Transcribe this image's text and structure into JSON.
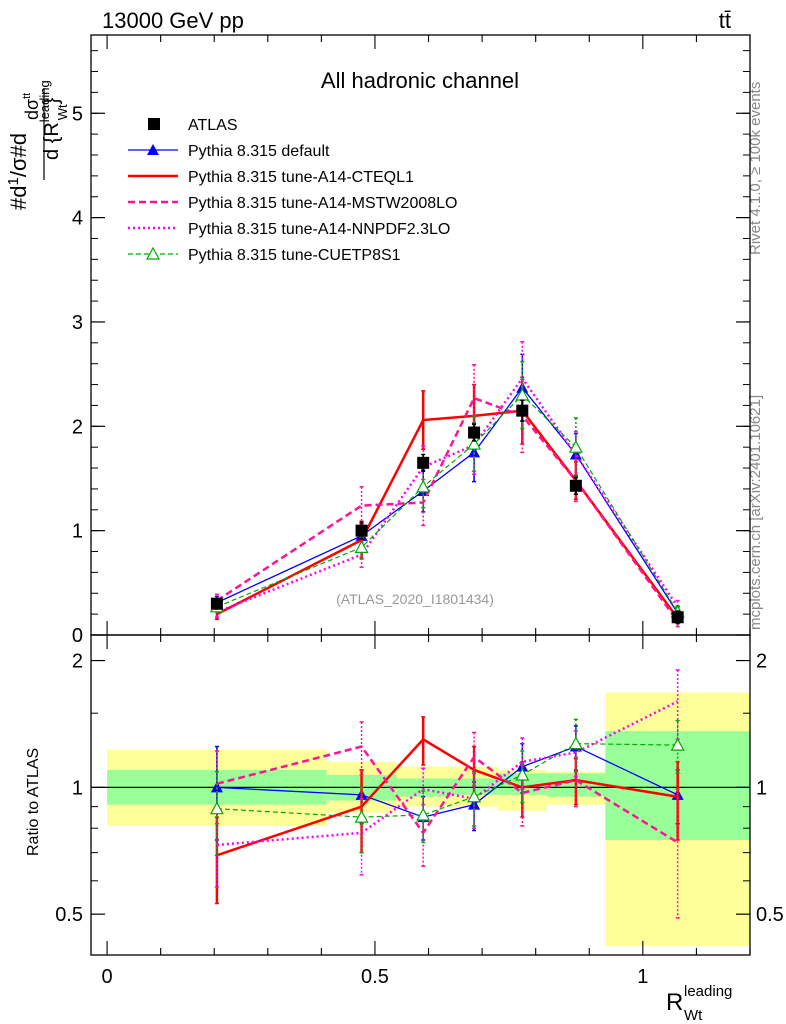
{
  "header": {
    "energy_label": "13000 GeV pp",
    "process_label": "tt̄",
    "channel_title": "All hadronic channel",
    "watermark": "(ATLAS_2020_I1801434)",
    "rivet_label": "Rivet 4.1.0, ≥ 100k events",
    "mcplots_label": "mcplots.cern.ch [arXiv:2401.10621]"
  },
  "chart_data": [
    {
      "type": "line",
      "panel": "main",
      "ylabel": "#d1/σ#d dσ^tt / d{R_Wt^leading}",
      "ylim": [
        0,
        5.75
      ],
      "yticks": [
        0,
        1,
        2,
        3,
        4,
        5
      ],
      "ytick_labels": [
        "0",
        "1",
        "2",
        "3",
        "4",
        "5"
      ],
      "xlim": [
        -0.03,
        1.2
      ],
      "x": [
        0.205,
        0.475,
        0.59,
        0.685,
        0.775,
        0.875,
        1.065
      ],
      "series": [
        {
          "name": "ATLAS",
          "color": "#000000",
          "style": "square",
          "values": [
            0.3,
            1.0,
            1.65,
            1.94,
            2.15,
            1.43,
            0.17
          ],
          "err": [
            0.05,
            0.08,
            0.08,
            0.08,
            0.1,
            0.08,
            0.06
          ]
        },
        {
          "name": "Pythia 8.315 default",
          "color": "#0000ff",
          "style": "solid-triangle",
          "values": [
            0.31,
            0.95,
            1.38,
            1.75,
            2.37,
            1.73,
            0.21
          ],
          "err": [
            0.06,
            0.12,
            0.2,
            0.28,
            0.32,
            0.2,
            0.06
          ]
        },
        {
          "name": "Pythia 8.315 tune-A14-CTEQL1",
          "color": "#ff0000",
          "style": "solid",
          "values": [
            0.2,
            0.91,
            2.06,
            2.1,
            2.15,
            1.48,
            0.16
          ],
          "err": [
            0.05,
            0.18,
            0.28,
            0.3,
            0.32,
            0.18,
            0.05
          ]
        },
        {
          "name": "Pythia 8.315 tune-A14-MSTW2008LO",
          "color": "#ff1493",
          "style": "dashed",
          "values": [
            0.33,
            1.24,
            1.27,
            2.27,
            2.1,
            1.48,
            0.13
          ],
          "err": [
            0.06,
            0.18,
            0.22,
            0.32,
            0.35,
            0.2,
            0.05
          ]
        },
        {
          "name": "Pythia 8.315 tune-A14-NNPDF2.3LO",
          "color": "#ff00ff",
          "style": "dotted",
          "values": [
            0.22,
            0.77,
            1.61,
            1.82,
            2.46,
            1.73,
            0.27
          ],
          "err": [
            0.05,
            0.12,
            0.2,
            0.28,
            0.35,
            0.22,
            0.06
          ]
        },
        {
          "name": "Pythia 8.315 tune-CUETP8S1",
          "color": "#00aa00",
          "style": "dashed-open-triangle",
          "values": [
            0.27,
            0.84,
            1.42,
            1.83,
            2.3,
            1.8,
            0.22
          ],
          "err": [
            0.05,
            0.1,
            0.2,
            0.26,
            0.32,
            0.28,
            0.06
          ]
        }
      ],
      "xticks": [
        0,
        0.5,
        1
      ],
      "xtick_labels": [
        "0",
        "0.5",
        "1"
      ],
      "xlabel": "R_Wt^leading",
      "legend": "top-left"
    },
    {
      "type": "line",
      "panel": "ratio",
      "ylabel": "Ratio to ATLAS",
      "ylim": [
        0.4,
        2.3
      ],
      "yscale": "log",
      "yticks": [
        0.5,
        1,
        2
      ],
      "ytick_labels": [
        "0.5",
        "1",
        "2"
      ],
      "xlim": [
        -0.03,
        1.2
      ],
      "xticks": [
        0,
        0.5,
        1
      ],
      "xtick_labels": [
        "0",
        "0.5",
        "1"
      ],
      "xlabel": "R_Wt^leading",
      "bins": [
        {
          "lo": 0.0,
          "hi": 0.41,
          "stat_lo": 0.91,
          "stat_hi": 1.1,
          "tot_lo": 0.81,
          "tot_hi": 1.23
        },
        {
          "lo": 0.41,
          "hi": 0.54,
          "stat_lo": 0.93,
          "stat_hi": 1.07,
          "tot_lo": 0.87,
          "tot_hi": 1.15
        },
        {
          "lo": 0.54,
          "hi": 0.64,
          "stat_lo": 0.95,
          "stat_hi": 1.05,
          "tot_lo": 0.9,
          "tot_hi": 1.12
        },
        {
          "lo": 0.64,
          "hi": 0.73,
          "stat_lo": 0.96,
          "stat_hi": 1.05,
          "tot_lo": 0.9,
          "tot_hi": 1.12
        },
        {
          "lo": 0.73,
          "hi": 0.82,
          "stat_lo": 0.96,
          "stat_hi": 1.08,
          "tot_lo": 0.88,
          "tot_hi": 1.1
        },
        {
          "lo": 0.82,
          "hi": 0.93,
          "stat_lo": 0.95,
          "stat_hi": 1.08,
          "tot_lo": 0.91,
          "tot_hi": 1.09
        },
        {
          "lo": 0.93,
          "hi": 1.2,
          "stat_lo": 0.75,
          "stat_hi": 1.36,
          "tot_lo": 0.42,
          "tot_hi": 1.68
        }
      ],
      "x": [
        0.205,
        0.475,
        0.59,
        0.685,
        0.775,
        0.875,
        1.065
      ],
      "series": [
        {
          "name": "Pythia 8.315 default",
          "color": "#0000ff",
          "style": "solid-triangle",
          "values": [
            1.0,
            0.96,
            0.85,
            0.91,
            1.12,
            1.25,
            0.96
          ],
          "err": [
            0.25,
            0.14,
            0.1,
            0.12,
            0.15,
            0.15,
            0.14
          ]
        },
        {
          "name": "Pythia 8.315 tune-A14-CTEQL1",
          "color": "#ff0000",
          "style": "solid",
          "values": [
            0.69,
            0.9,
            1.3,
            1.1,
            1.0,
            1.04,
            0.95
          ],
          "err": [
            0.16,
            0.2,
            0.17,
            0.15,
            0.15,
            0.13,
            0.2
          ]
        },
        {
          "name": "Pythia 8.315 tune-A14-MSTW2008LO",
          "color": "#ff1493",
          "style": "dashed",
          "values": [
            1.02,
            1.25,
            0.78,
            1.18,
            0.97,
            1.04,
            0.74
          ],
          "err": [
            0.2,
            0.18,
            0.13,
            0.17,
            0.16,
            0.14,
            0.25
          ]
        },
        {
          "name": "Pythia 8.315 tune-A14-NNPDF2.3LO",
          "color": "#ff00ff",
          "style": "dotted",
          "values": [
            0.73,
            0.78,
            0.99,
            0.94,
            1.15,
            1.21,
            1.6
          ],
          "err": [
            0.15,
            0.16,
            0.12,
            0.14,
            0.16,
            0.15,
            0.3
          ]
        },
        {
          "name": "Pythia 8.315 tune-CUETP8S1",
          "color": "#00aa00",
          "style": "dashed-open-triangle",
          "values": [
            0.89,
            0.85,
            0.86,
            0.95,
            1.07,
            1.27,
            1.26
          ],
          "err": [
            0.2,
            0.15,
            0.12,
            0.14,
            0.15,
            0.18,
            0.18
          ]
        }
      ]
    }
  ]
}
